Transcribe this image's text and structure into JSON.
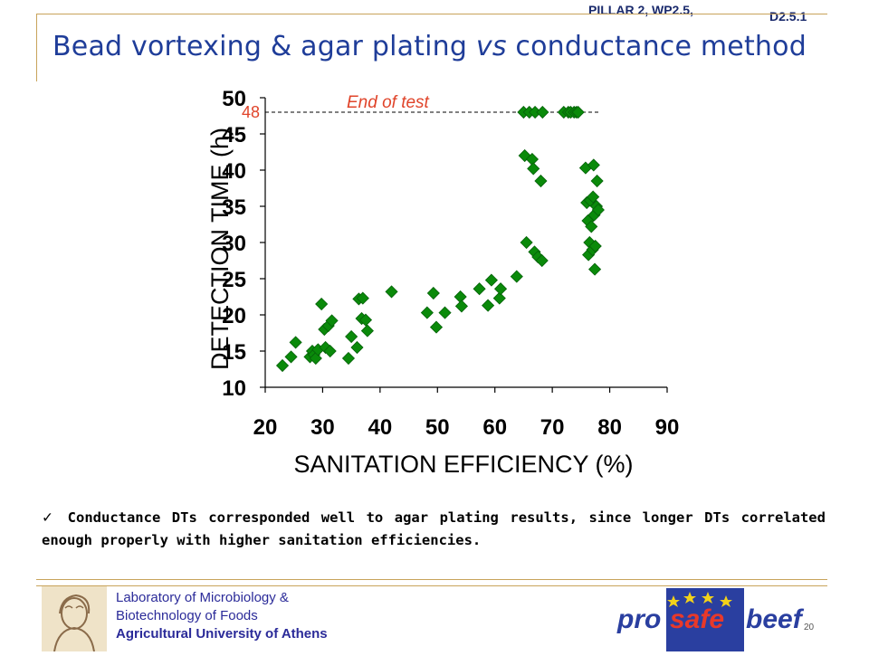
{
  "header": {
    "pillar": "PILLAR 2, WP2.5,",
    "deliverable": "D2.5.1",
    "title": "Bead vortexing & agar plating vs conductance method"
  },
  "chart_data": {
    "type": "scatter",
    "xlabel": "SANITATION EFFICIENCY (%)",
    "ylabel": "DETECTION TIME (h)",
    "xlim": [
      20,
      90
    ],
    "ylim": [
      10,
      50
    ],
    "xticks": [
      20,
      30,
      40,
      50,
      60,
      70,
      80,
      90
    ],
    "yticks": [
      10,
      15,
      20,
      25,
      30,
      35,
      40,
      45,
      50
    ],
    "marker_color": "#0a8a0a",
    "annotation": {
      "text": "End of test",
      "value_label": "48",
      "y": 48,
      "color": "#e0442a"
    },
    "points": [
      [
        23,
        13
      ],
      [
        24.5,
        14.2
      ],
      [
        25.3,
        16.2
      ],
      [
        27.8,
        14.2
      ],
      [
        28.2,
        15
      ],
      [
        28.5,
        14.5
      ],
      [
        28.8,
        14
      ],
      [
        29.2,
        15.2
      ],
      [
        29.8,
        21.5
      ],
      [
        30.3,
        18
      ],
      [
        30.5,
        15.5
      ],
      [
        31,
        18.5
      ],
      [
        31.3,
        15
      ],
      [
        31.6,
        19.2
      ],
      [
        34.5,
        14
      ],
      [
        35,
        17
      ],
      [
        36,
        15.5
      ],
      [
        36.3,
        22.2
      ],
      [
        36.8,
        19.5
      ],
      [
        37,
        22.3
      ],
      [
        37.5,
        19.3
      ],
      [
        37.8,
        17.8
      ],
      [
        42,
        23.2
      ],
      [
        48.2,
        20.3
      ],
      [
        49.3,
        23
      ],
      [
        49.8,
        18.3
      ],
      [
        51.3,
        20.3
      ],
      [
        54,
        22.5
      ],
      [
        54.2,
        21.2
      ],
      [
        57.3,
        23.6
      ],
      [
        58.8,
        21.3
      ],
      [
        59.4,
        24.8
      ],
      [
        60.8,
        22.3
      ],
      [
        61,
        23.6
      ],
      [
        63.8,
        25.3
      ],
      [
        65,
        48
      ],
      [
        65.2,
        42
      ],
      [
        65.5,
        30
      ],
      [
        66,
        48
      ],
      [
        66.5,
        41.5
      ],
      [
        66.7,
        40.2
      ],
      [
        66.9,
        28.7
      ],
      [
        67,
        48
      ],
      [
        67.5,
        28
      ],
      [
        68,
        38.5
      ],
      [
        68.2,
        27.5
      ],
      [
        68.3,
        48
      ],
      [
        72,
        48
      ],
      [
        72.8,
        48
      ],
      [
        73.2,
        48
      ],
      [
        73.8,
        48
      ],
      [
        74.2,
        48
      ],
      [
        74.5,
        48
      ],
      [
        75.8,
        40.3
      ],
      [
        76,
        35.5
      ],
      [
        76.2,
        33
      ],
      [
        76.3,
        28.3
      ],
      [
        76.5,
        30
      ],
      [
        76.6,
        35.8
      ],
      [
        76.8,
        32.2
      ],
      [
        77,
        29
      ],
      [
        77.1,
        36.3
      ],
      [
        77.2,
        40.7
      ],
      [
        77.3,
        33.8
      ],
      [
        77.4,
        26.3
      ],
      [
        77.5,
        29.5
      ],
      [
        77.7,
        35
      ],
      [
        77.8,
        38.5
      ],
      [
        78,
        34.5
      ]
    ]
  },
  "note": {
    "check": "✓",
    "text": "Conductance DTs corresponded well to agar plating results, since longer DTs correlated enough properly with higher sanitation efficiencies."
  },
  "footer": {
    "lab_line1": "Laboratory of Microbiology &",
    "lab_line2": "Biotechnology of Foods",
    "university": "Agricultural University of Athens",
    "page_number": "20",
    "logo_left": "pro",
    "logo_mid": "safe",
    "logo_right": "beef"
  }
}
